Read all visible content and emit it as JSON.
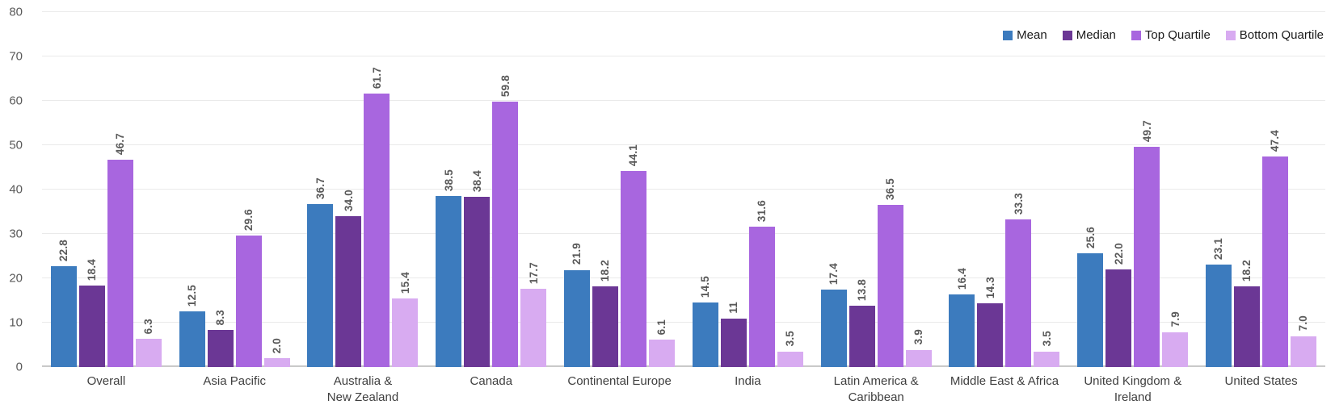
{
  "chart_data": {
    "type": "bar",
    "title": "",
    "xlabel": "",
    "ylabel": "",
    "grid": true,
    "legend_position": "top-right",
    "y_axis": {
      "min": 0,
      "max": 80,
      "ticks": [
        0,
        10,
        20,
        30,
        40,
        50,
        60,
        70,
        80
      ]
    },
    "categories": [
      "Overall",
      "Asia Pacific",
      "Australia &\nNew Zealand",
      "Canada",
      "Continental Europe",
      "India",
      "Latin America &\nCaribbean",
      "Middle East & Africa",
      "United Kingdom &\nIreland",
      "United States"
    ],
    "series": [
      {
        "name": "Mean",
        "color": "#3C7BBE",
        "values": [
          22.8,
          12.5,
          36.7,
          38.5,
          21.9,
          14.5,
          17.4,
          16.4,
          25.6,
          23.1
        ],
        "labels": [
          "22.8",
          "12.5",
          "36.7",
          "38.5",
          "21.9",
          "14.5",
          "17.4",
          "16.4",
          "25.6",
          "23.1"
        ]
      },
      {
        "name": "Median",
        "color": "#6B3795",
        "values": [
          18.4,
          8.3,
          34.0,
          38.4,
          18.2,
          11,
          13.8,
          14.3,
          22.0,
          18.2
        ],
        "labels": [
          "18.4",
          "8.3",
          "34.0",
          "38.4",
          "18.2",
          "11",
          "13.8",
          "14.3",
          "22.0",
          "18.2"
        ]
      },
      {
        "name": "Top Quartile",
        "color": "#A866DF",
        "values": [
          46.7,
          29.6,
          61.7,
          59.8,
          44.1,
          31.6,
          36.5,
          33.3,
          49.7,
          47.4
        ],
        "labels": [
          "46.7",
          "29.6",
          "61.7",
          "59.8",
          "44.1",
          "31.6",
          "36.5",
          "33.3",
          "49.7",
          "47.4"
        ]
      },
      {
        "name": "Bottom Quartile",
        "color": "#D8ABF1",
        "values": [
          6.3,
          2.0,
          15.4,
          17.7,
          6.1,
          3.5,
          3.9,
          3.5,
          7.9,
          7.0
        ],
        "labels": [
          "6.3",
          "2.0",
          "15.4",
          "17.7",
          "6.1",
          "3.5",
          "3.9",
          "3.5",
          "7.9",
          "7.0"
        ]
      }
    ],
    "colors": {
      "gridline": "#eaeaea",
      "baseline": "#c9c9c9",
      "tick_text": "#5a5a5a",
      "value_label_text": "#595959",
      "category_text": "#3f3f3f",
      "legend_text": "#1a1a1a",
      "background": "#ffffff"
    }
  }
}
